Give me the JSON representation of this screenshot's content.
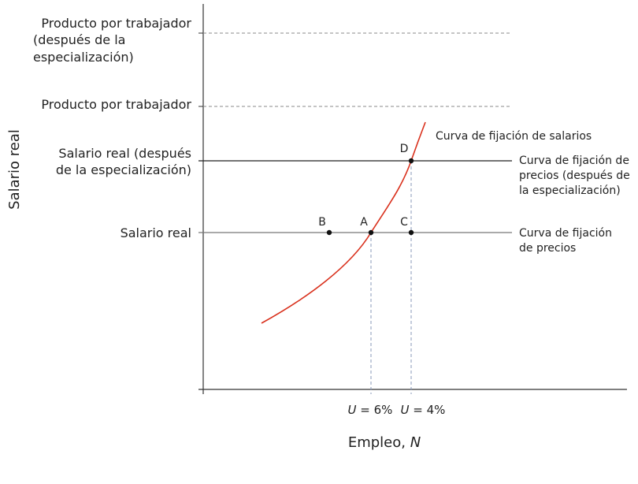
{
  "axes": {
    "y_label": "Salario real",
    "x_label": {
      "text": "Empleo, ",
      "var": "N"
    }
  },
  "y_levels": [
    {
      "lines": [
        "Producto por trabajador",
        "(después de la",
        "especialización)"
      ]
    },
    {
      "lines": [
        "Producto por trabajador"
      ]
    },
    {
      "lines": [
        "Salario real (después",
        "de la especialización)"
      ]
    },
    {
      "lines": [
        "Salario real"
      ]
    }
  ],
  "x_levels": [
    {
      "var": "U",
      "text": " = 6%"
    },
    {
      "var": "U",
      "text": " = 4%"
    }
  ],
  "curves": [
    {
      "lines": [
        "Curva de fijación de salarios"
      ]
    },
    {
      "lines": [
        "Curva de fijación de",
        "precios (después de",
        "la especialización)"
      ]
    },
    {
      "lines": [
        "Curva de fijación",
        "de precios"
      ]
    }
  ],
  "points": [
    "B",
    "A",
    "C",
    "D"
  ]
}
